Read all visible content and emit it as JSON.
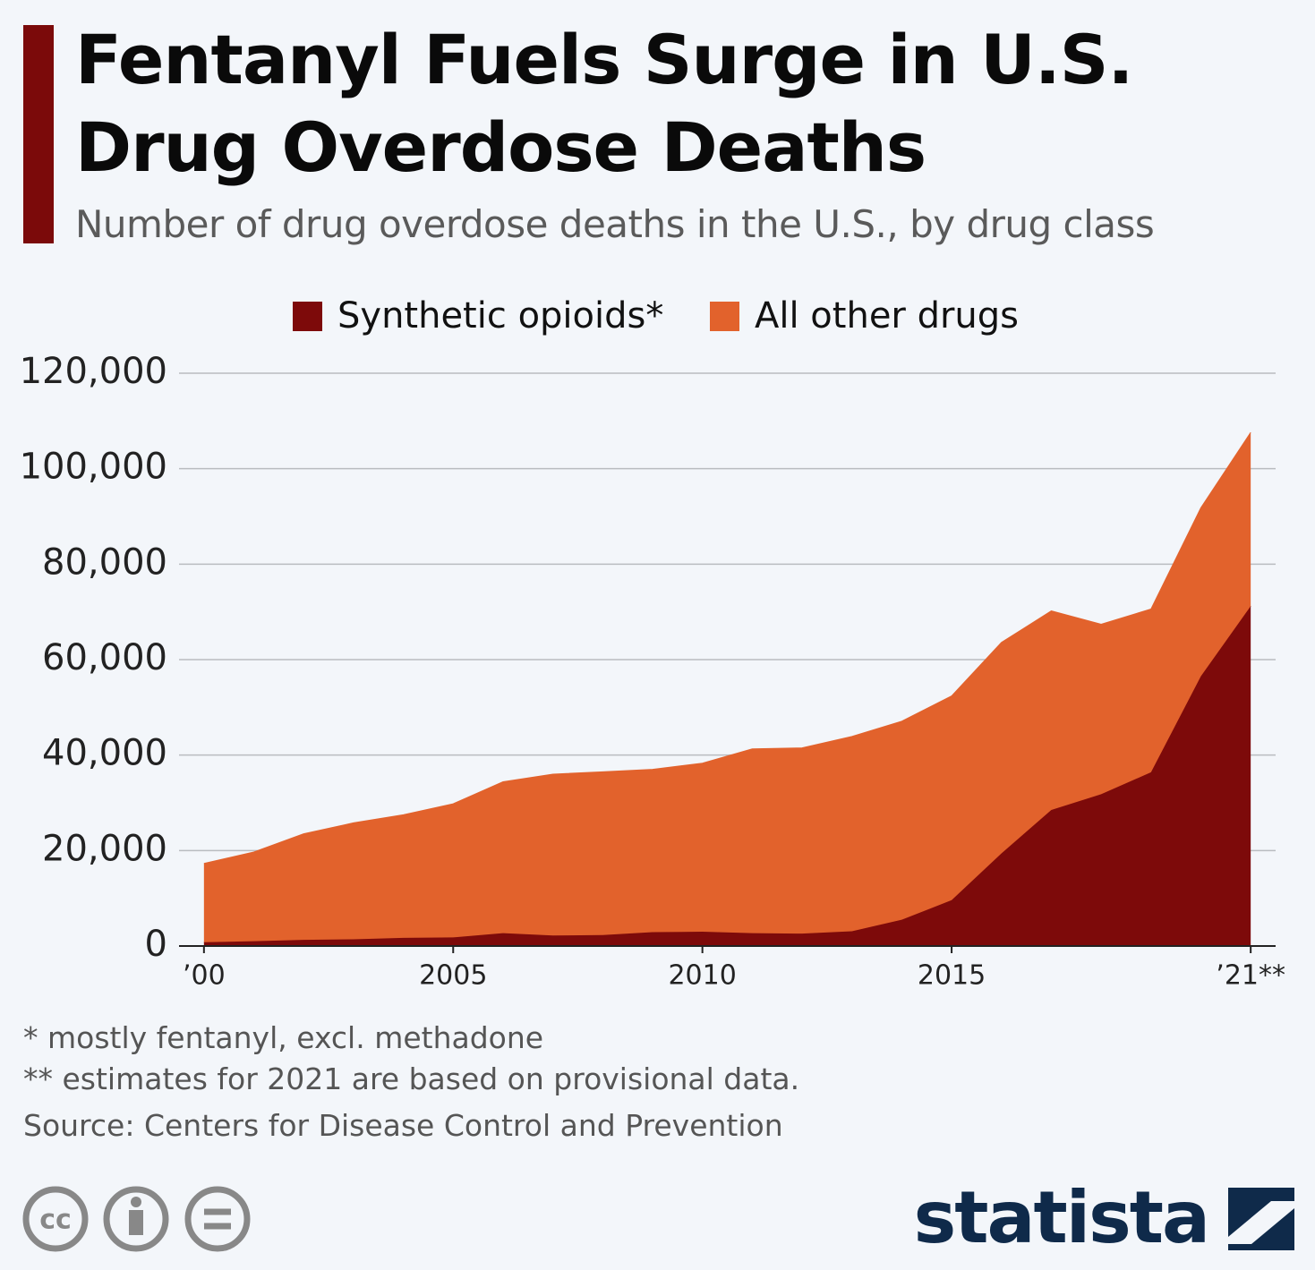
{
  "chart_data": {
    "type": "stacked-area",
    "title": "Fentanyl Fuels Surge in U.S. Drug Overdose Deaths",
    "subtitle": "Number of drug overdose deaths in the U.S., by drug class",
    "x": [
      2000,
      2001,
      2002,
      2003,
      2004,
      2005,
      2006,
      2007,
      2008,
      2009,
      2010,
      2011,
      2012,
      2013,
      2014,
      2015,
      2016,
      2017,
      2018,
      2019,
      2020,
      2021
    ],
    "series": [
      {
        "name": "Synthetic opioids*",
        "color": "#7d0a0a",
        "values": [
          800,
          1000,
          1300,
          1400,
          1700,
          1800,
          2700,
          2200,
          2300,
          2900,
          3000,
          2700,
          2600,
          3100,
          5500,
          9600,
          19400,
          28500,
          31800,
          36400,
          56500,
          71200
        ]
      },
      {
        "name": "All other drugs",
        "color": "#e2622c",
        "values": [
          16500,
          18700,
          22200,
          24400,
          25800,
          28000,
          31700,
          33800,
          34200,
          34100,
          35300,
          38600,
          38900,
          40800,
          41600,
          42800,
          44200,
          41700,
          35600,
          34200,
          35300,
          36400
        ]
      }
    ],
    "xlim": [
      1999.5,
      2021.5
    ],
    "xticks": [
      {
        "value": 2000,
        "label": "’00"
      },
      2005,
      2010,
      2015,
      {
        "value": 2021,
        "label": "’21**"
      }
    ],
    "ylim": [
      0,
      120000
    ],
    "yticks": [
      {
        "value": 0,
        "label": "0"
      },
      {
        "value": 20000,
        "label": "20,000"
      },
      {
        "value": 40000,
        "label": "40,000"
      },
      {
        "value": 60000,
        "label": "60,000"
      },
      {
        "value": 80000,
        "label": "80,000"
      },
      {
        "value": 100000,
        "label": "100,000"
      },
      {
        "value": 120000,
        "label": "120,000"
      }
    ],
    "grid": true,
    "legend": "top",
    "footnotes": [
      "*   mostly fentanyl, excl. methadone",
      "** estimates for 2021 are based on provisional data.",
      "Source: Centers for Disease Control and Prevention"
    ],
    "brand": "statista"
  }
}
